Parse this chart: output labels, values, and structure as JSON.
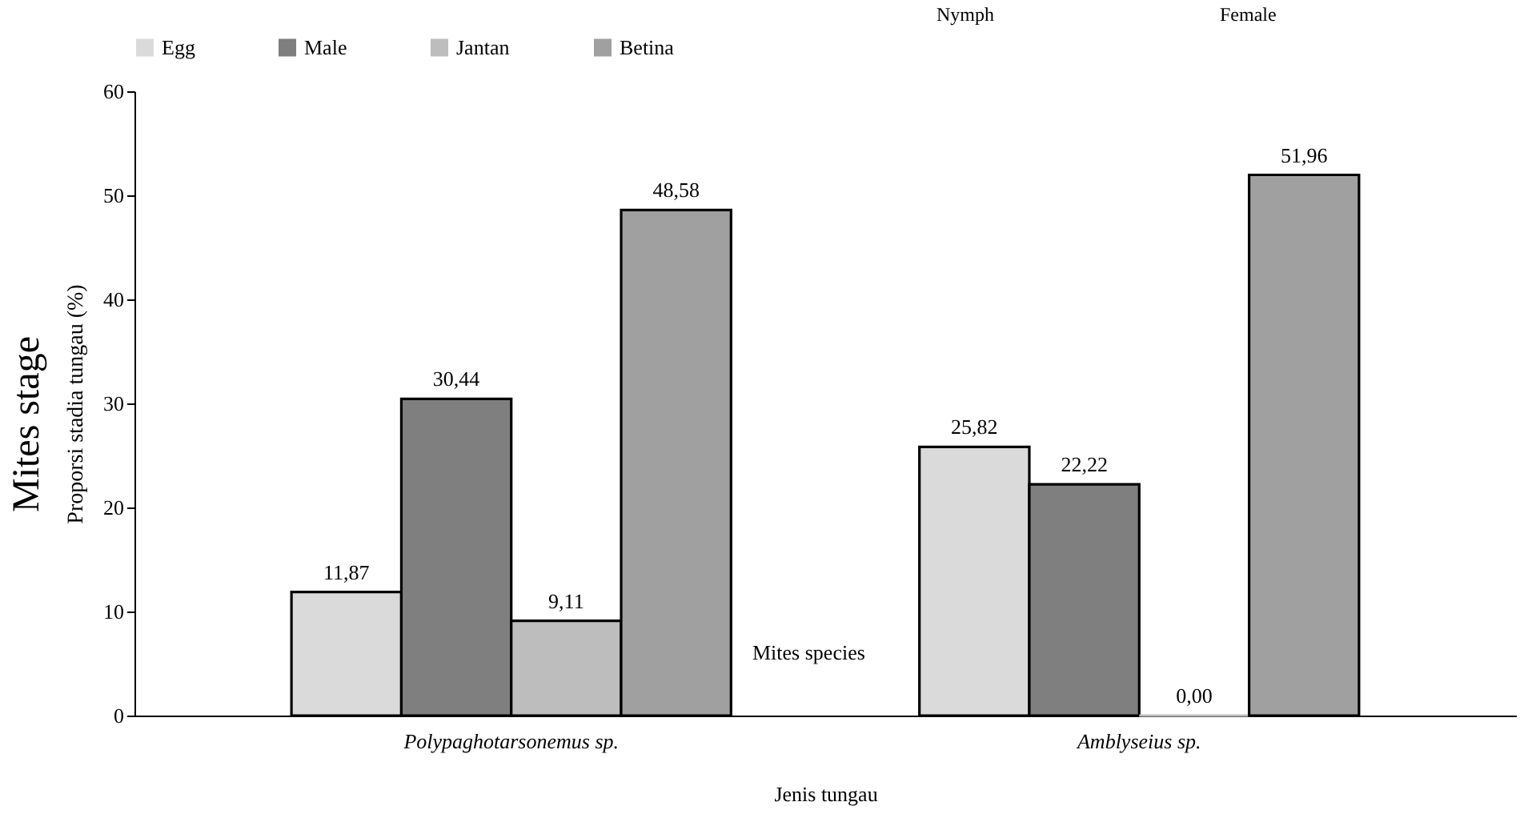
{
  "chart_data": {
    "type": "bar",
    "categories": [
      "Polypaghotarsonemus sp.",
      "Amblyseius sp."
    ],
    "xlabel": "Jenis tungau",
    "ylabel": "Proporsi stadia tungau (%)",
    "series": [
      {
        "name": "Egg",
        "color": "#dadada",
        "values": [
          11.87,
          25.82
        ],
        "value_labels": [
          "11,87",
          "25,82"
        ]
      },
      {
        "name": "Male",
        "color": "#7f7f7f",
        "values": [
          30.44,
          22.22
        ],
        "value_labels": [
          "30,44",
          "22,22"
        ]
      },
      {
        "name": "Jantan",
        "color": "#bdbdbd",
        "values": [
          9.11,
          0
        ],
        "value_labels": [
          "9,11",
          "0,00"
        ]
      },
      {
        "name": "Betina",
        "color": "#a0a0a0",
        "values": [
          48.58,
          51.96
        ],
        "value_labels": [
          "48,58",
          "51,96"
        ]
      }
    ],
    "ylim": [
      0,
      60
    ],
    "yticks": [
      0,
      10,
      20,
      30,
      40,
      50,
      60
    ],
    "grid": false,
    "legend": "top",
    "annotations": [
      "Mites stage",
      "Mites species",
      "Nymph",
      "Female"
    ]
  }
}
